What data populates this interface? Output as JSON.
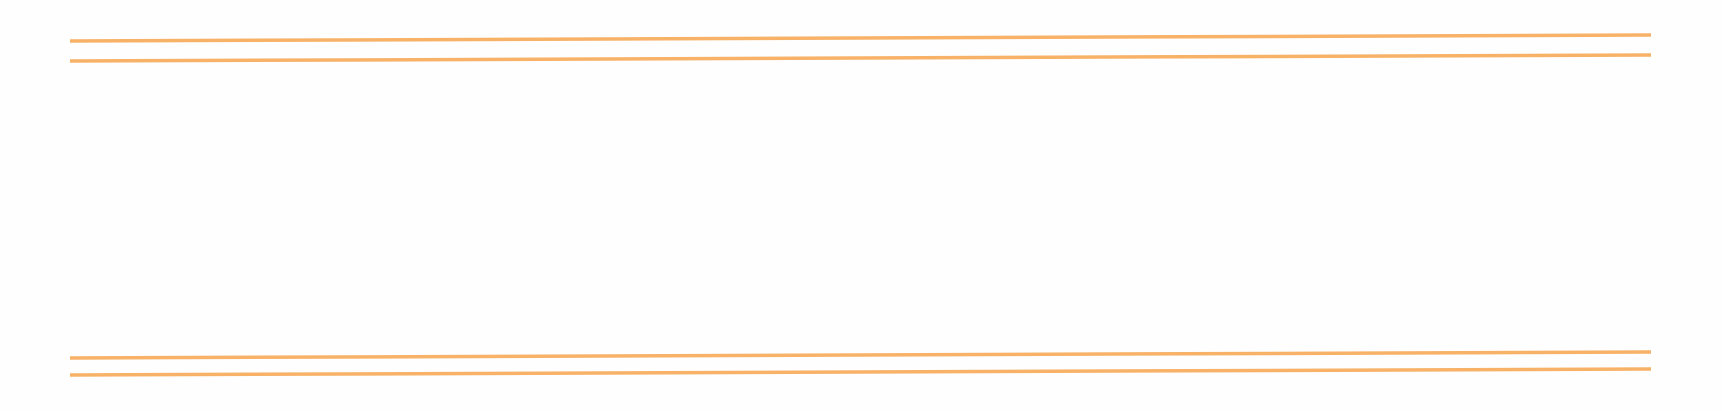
{
  "diagram": {
    "line_color": "#f7b267",
    "line_count": 4
  }
}
